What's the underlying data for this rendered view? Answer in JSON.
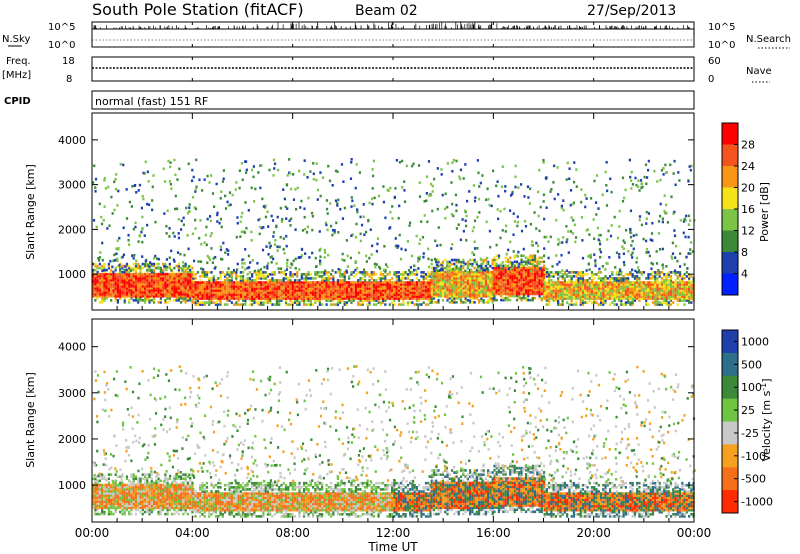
{
  "header": {
    "station": "South Pole Station (fitACF)",
    "beam": "Beam 02",
    "date": "27/Sep/2013"
  },
  "panels": {
    "nsky_label": "N.Sky",
    "nsky_ticks": [
      "10^5",
      "10^0"
    ],
    "nsearch_label": "N.Search",
    "nsearch_ticks": [
      "10^5",
      "10^0"
    ],
    "freq_label": "Freq.",
    "freq_unit": "[MHz]",
    "freq_ticks": [
      "18",
      "8"
    ],
    "nave_label": "Nave",
    "nave_ticks": [
      "60",
      "0"
    ],
    "cpid_label": "CPID",
    "cpid_value": "normal (fast) 151 RF"
  },
  "chart_data": [
    {
      "type": "heatmap",
      "name": "power",
      "ylabel": "Slant Range [km]",
      "yticks": [
        1000,
        2000,
        3000,
        4000
      ],
      "ylim": [
        200,
        4600
      ],
      "colorbar_label": "Power [dB]",
      "colorbar_ticks": [
        4,
        8,
        12,
        16,
        20,
        24,
        28
      ],
      "colorbar_colors": [
        "#0020ff",
        "#1e3fae",
        "#3a8a3a",
        "#7cc447",
        "#f6e219",
        "#f79516",
        "#f5541f",
        "#ff0000"
      ],
      "bands": [
        {
          "t0": 0.0,
          "t1": 4.0,
          "r0": 500,
          "r1": 1050,
          "level": "high"
        },
        {
          "t0": 4.0,
          "t1": 13.5,
          "r0": 450,
          "r1": 850,
          "level": "high"
        },
        {
          "t0": 13.5,
          "t1": 16.0,
          "r0": 500,
          "r1": 1100,
          "level": "mid"
        },
        {
          "t0": 16.0,
          "t1": 18.0,
          "r0": 550,
          "r1": 1200,
          "level": "high"
        },
        {
          "t0": 18.0,
          "t1": 24.0,
          "r0": 450,
          "r1": 850,
          "level": "mid"
        }
      ]
    },
    {
      "type": "heatmap",
      "name": "velocity",
      "ylabel": "Slant Range [km]",
      "xlabel": "Time UT",
      "xticks": [
        "00:00",
        "04:00",
        "08:00",
        "12:00",
        "16:00",
        "20:00",
        "00:00"
      ],
      "yticks": [
        1000,
        2000,
        3000,
        4000
      ],
      "ylim": [
        200,
        4600
      ],
      "colorbar_label": "Velocity [m s",
      "colorbar_unit_sup": "-1",
      "colorbar_unit_end": "]",
      "colorbar_ticks": [
        "1000",
        "500",
        "100",
        "25",
        "-25",
        "-100",
        "-500",
        "-1000"
      ],
      "colorbar_colors": [
        "#1f3faa",
        "#2d6e8a",
        "#3a8a3a",
        "#6fc440",
        "#c8c8c8",
        "#f6a020",
        "#f5701a",
        "#ff2a00"
      ]
    }
  ],
  "colors": {
    "dark_blue": "#1e3fae",
    "green": "#3a9a3a",
    "orange": "#f57d1a",
    "red": "#ff0000",
    "gray": "#c8c8c8"
  }
}
